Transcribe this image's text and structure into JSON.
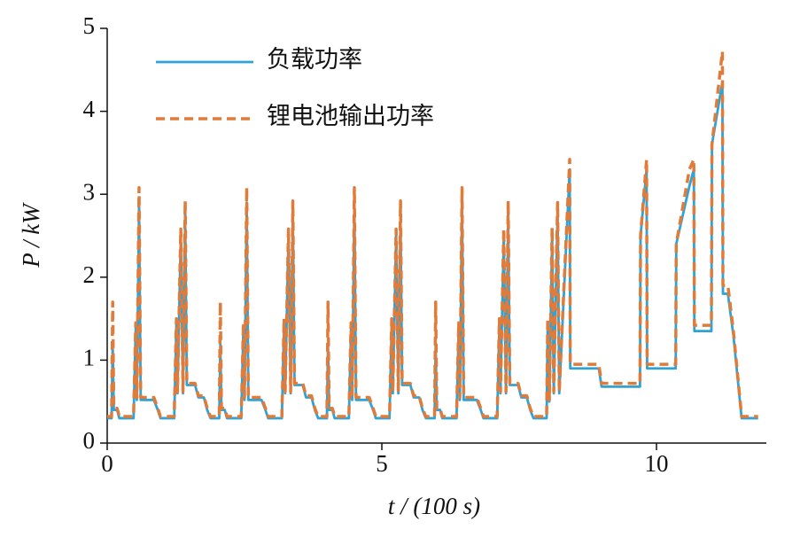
{
  "chart_data": {
    "type": "line",
    "x_label": "t / (100 s)",
    "y_label": "P / kW",
    "xlim": [
      0,
      12
    ],
    "xticks": [
      0,
      5,
      10
    ],
    "ylim": [
      0,
      5
    ],
    "yticks": [
      0,
      1,
      2,
      3,
      4,
      5
    ],
    "legend": "upper left",
    "series": [
      {
        "name": "负载功率",
        "color": "#2ea3d6",
        "dash": false,
        "x": [
          0,
          0.08,
          0.1,
          0.12,
          0.18,
          0.22,
          0.48,
          0.52,
          0.54,
          0.58,
          0.61,
          0.85,
          0.92,
          0.97,
          1.22,
          1.26,
          1.28,
          1.34,
          1.38,
          1.42,
          1.45,
          1.6,
          1.66,
          1.76,
          1.82,
          1.88,
          1.96,
          2.04,
          2.06,
          2.08,
          2.14,
          2.18,
          2.44,
          2.48,
          2.5,
          2.54,
          2.57,
          2.81,
          2.88,
          2.93,
          3.18,
          3.22,
          3.24,
          3.3,
          3.34,
          3.38,
          3.41,
          3.56,
          3.62,
          3.72,
          3.78,
          3.84,
          3.92,
          4,
          4.02,
          4.04,
          4.1,
          4.14,
          4.4,
          4.44,
          4.46,
          4.5,
          4.53,
          4.77,
          4.84,
          4.89,
          5.14,
          5.18,
          5.2,
          5.26,
          5.3,
          5.34,
          5.37,
          5.52,
          5.58,
          5.68,
          5.74,
          5.8,
          5.88,
          5.96,
          5.98,
          6,
          6.06,
          6.1,
          6.36,
          6.4,
          6.42,
          6.46,
          6.49,
          6.73,
          6.8,
          6.85,
          7.1,
          7.14,
          7.16,
          7.22,
          7.26,
          7.3,
          7.33,
          7.48,
          7.54,
          7.64,
          7.7,
          7.76,
          7.95,
          8,
          8.02,
          8.05,
          8.1,
          8.13,
          8.2,
          8.23,
          8.42,
          8.43,
          8.95,
          9,
          9.7,
          9.71,
          9.82,
          9.83,
          10.35,
          10.36,
          10.6,
          10.68,
          10.69,
          11,
          11.01,
          11.2,
          11.21,
          11.3,
          11.4,
          11.55,
          11.85
        ],
        "values": [
          0.3,
          0.3,
          1.2,
          0.4,
          0.4,
          0.3,
          0.3,
          1.4,
          0.52,
          2.9,
          0.52,
          0.52,
          0.4,
          0.3,
          0.3,
          1.45,
          0.6,
          2.5,
          0.6,
          2.75,
          0.7,
          0.7,
          0.55,
          0.55,
          0.4,
          0.3,
          0.3,
          0.3,
          1.2,
          0.4,
          0.4,
          0.3,
          0.3,
          1.4,
          0.52,
          2.9,
          0.52,
          0.52,
          0.4,
          0.3,
          0.3,
          1.45,
          0.6,
          2.5,
          0.6,
          2.75,
          0.7,
          0.7,
          0.55,
          0.55,
          0.4,
          0.3,
          0.3,
          0.3,
          1.2,
          0.4,
          0.4,
          0.3,
          0.3,
          1.4,
          0.52,
          2.9,
          0.52,
          0.52,
          0.4,
          0.3,
          0.3,
          1.45,
          0.6,
          2.5,
          0.6,
          2.75,
          0.7,
          0.7,
          0.55,
          0.55,
          0.4,
          0.3,
          0.3,
          0.3,
          1.2,
          0.4,
          0.4,
          0.3,
          0.3,
          1.4,
          0.52,
          2.9,
          0.52,
          0.52,
          0.4,
          0.3,
          0.3,
          1.45,
          0.6,
          2.5,
          0.6,
          2.75,
          0.7,
          0.7,
          0.55,
          0.55,
          0.4,
          0.3,
          0.3,
          0.3,
          1.45,
          0.5,
          2.5,
          0.6,
          2.8,
          0.6,
          3.3,
          0.9,
          0.9,
          0.68,
          0.68,
          2.5,
          3.3,
          0.9,
          0.9,
          2.4,
          3.1,
          3.3,
          1.35,
          1.35,
          3.6,
          4.35,
          1.8,
          1.8,
          1.3,
          0.3,
          0.3
        ]
      },
      {
        "name": "锂电池输出功率",
        "color": "#e07b39",
        "dash": true,
        "x": [
          0,
          0.08,
          0.1,
          0.12,
          0.18,
          0.22,
          0.48,
          0.52,
          0.54,
          0.58,
          0.61,
          0.85,
          0.92,
          0.97,
          1.22,
          1.26,
          1.28,
          1.34,
          1.38,
          1.42,
          1.45,
          1.6,
          1.66,
          1.76,
          1.82,
          1.88,
          1.96,
          2.04,
          2.06,
          2.08,
          2.14,
          2.18,
          2.44,
          2.48,
          2.5,
          2.54,
          2.57,
          2.81,
          2.88,
          2.93,
          3.18,
          3.22,
          3.24,
          3.3,
          3.34,
          3.38,
          3.41,
          3.56,
          3.62,
          3.72,
          3.78,
          3.84,
          3.92,
          4,
          4.02,
          4.04,
          4.1,
          4.14,
          4.4,
          4.44,
          4.46,
          4.5,
          4.53,
          4.77,
          4.84,
          4.89,
          5.14,
          5.18,
          5.2,
          5.26,
          5.3,
          5.34,
          5.37,
          5.52,
          5.58,
          5.68,
          5.74,
          5.8,
          5.88,
          5.96,
          5.98,
          6,
          6.06,
          6.1,
          6.36,
          6.4,
          6.42,
          6.46,
          6.49,
          6.73,
          6.8,
          6.85,
          7.1,
          7.14,
          7.16,
          7.22,
          7.26,
          7.3,
          7.33,
          7.48,
          7.54,
          7.64,
          7.7,
          7.76,
          7.95,
          8,
          8.02,
          8.05,
          8.1,
          8.13,
          8.2,
          8.23,
          8.42,
          8.43,
          8.95,
          9,
          9.7,
          9.71,
          9.82,
          9.83,
          10.35,
          10.36,
          10.6,
          10.68,
          10.69,
          11,
          11.01,
          11.2,
          11.21,
          11.3,
          11.4,
          11.55,
          11.85
        ],
        "values": [
          0.32,
          0.32,
          1.7,
          0.42,
          0.42,
          0.32,
          0.32,
          1.45,
          0.55,
          3.08,
          0.55,
          0.55,
          0.42,
          0.32,
          0.32,
          1.5,
          0.62,
          2.58,
          0.62,
          2.92,
          0.72,
          0.72,
          0.57,
          0.57,
          0.42,
          0.32,
          0.32,
          0.32,
          1.7,
          0.42,
          0.42,
          0.32,
          0.32,
          1.45,
          0.55,
          3.08,
          0.55,
          0.55,
          0.42,
          0.32,
          0.32,
          1.5,
          0.62,
          2.58,
          0.62,
          2.92,
          0.72,
          0.72,
          0.57,
          0.57,
          0.42,
          0.32,
          0.32,
          0.32,
          1.7,
          0.42,
          0.42,
          0.32,
          0.32,
          1.45,
          0.55,
          3.08,
          0.55,
          0.55,
          0.42,
          0.32,
          0.32,
          1.5,
          0.62,
          2.58,
          0.62,
          2.92,
          0.72,
          0.72,
          0.57,
          0.57,
          0.42,
          0.32,
          0.32,
          0.32,
          1.7,
          0.42,
          0.42,
          0.32,
          0.32,
          1.45,
          0.55,
          3.08,
          0.55,
          0.55,
          0.42,
          0.32,
          0.32,
          1.5,
          0.62,
          2.58,
          0.62,
          2.92,
          0.72,
          0.72,
          0.57,
          0.57,
          0.42,
          0.32,
          0.32,
          0.32,
          1.5,
          0.52,
          2.6,
          0.62,
          2.9,
          0.62,
          3.42,
          0.95,
          0.95,
          0.72,
          0.72,
          2.5,
          3.42,
          0.95,
          0.95,
          2.4,
          3.3,
          3.42,
          1.42,
          1.42,
          3.6,
          4.72,
          1.9,
          1.9,
          1.35,
          0.32,
          0.32
        ]
      }
    ]
  }
}
